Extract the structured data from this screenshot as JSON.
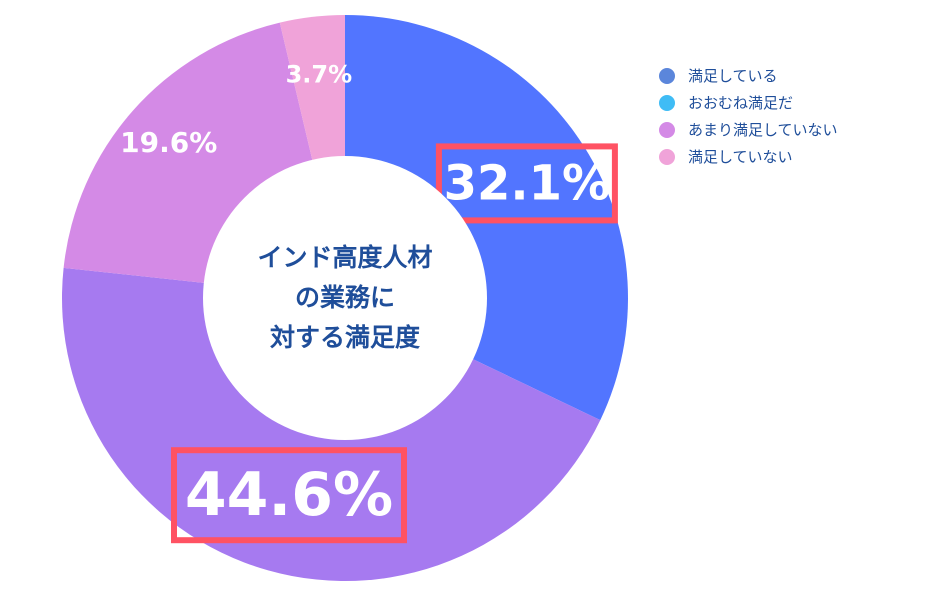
{
  "chart_data": {
    "type": "pie",
    "variant": "donut",
    "center_title": [
      "インド高度人材",
      "の業務に",
      "対する満足度"
    ],
    "categories": [
      "満足している",
      "おおむね満足だ",
      "あまり満足していない",
      "満足していない"
    ],
    "values": [
      32.1,
      44.6,
      19.6,
      3.7
    ],
    "value_labels": [
      "32.1%",
      "44.6%",
      "19.6%",
      "3.7%"
    ],
    "highlighted": [
      true,
      true,
      false,
      false
    ],
    "slice_colors": [
      "#5275ff",
      "#a67af0",
      "#d48ae6",
      "#f0a3d9"
    ],
    "legend": {
      "placement": "top-right",
      "entries": [
        {
          "label": "満足している",
          "color": "#5b86db"
        },
        {
          "label": "おおむね満足だ",
          "color": "#3fbcf5"
        },
        {
          "label": "あまり満足していない",
          "color": "#d48ae6"
        },
        {
          "label": "満足していない",
          "color": "#f0a3d9"
        }
      ]
    },
    "highlight_color": "#ff5263"
  }
}
